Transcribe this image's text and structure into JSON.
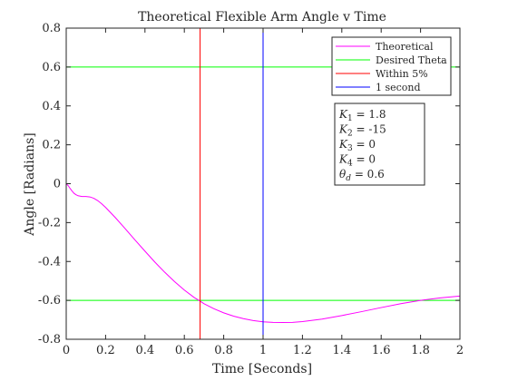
{
  "chart_data": {
    "type": "line",
    "title": "Theoretical Flexible Arm Angle v Time",
    "xlabel": "Time [Seconds]",
    "ylabel": "Angle [Radians]",
    "xlim": [
      0,
      2
    ],
    "ylim": [
      -0.8,
      0.8
    ],
    "grid": false,
    "legend_position": "top-right",
    "x_ticks": [
      0,
      0.2,
      0.4,
      0.6,
      0.8,
      1,
      1.2,
      1.4,
      1.6,
      1.8,
      2
    ],
    "x_tick_labels": [
      "0",
      "0.2",
      "0.4",
      "0.6",
      "0.8",
      "1",
      "1.2",
      "1.4",
      "1.6",
      "1.8",
      "2"
    ],
    "y_ticks": [
      -0.8,
      -0.6,
      -0.4,
      -0.2,
      0,
      0.2,
      0.4,
      0.6,
      0.8
    ],
    "y_tick_labels": [
      "-0.8",
      "-0.6",
      "-0.4",
      "-0.2",
      "0",
      "0.2",
      "0.4",
      "0.6",
      "0.8"
    ],
    "series": [
      {
        "name": "Theoretical",
        "color": "#ff00ff",
        "kind": "curve",
        "x": [
          0,
          0.01,
          0.02,
          0.03,
          0.04,
          0.05,
          0.06,
          0.08,
          0.1,
          0.12,
          0.14,
          0.16,
          0.18,
          0.2,
          0.25,
          0.3,
          0.35,
          0.4,
          0.45,
          0.5,
          0.55,
          0.6,
          0.65,
          0.68,
          0.7,
          0.75,
          0.8,
          0.85,
          0.9,
          0.95,
          1.0,
          1.05,
          1.1,
          1.15,
          1.2,
          1.3,
          1.4,
          1.5,
          1.6,
          1.7,
          1.8,
          1.9,
          2.0
        ],
        "y": [
          0,
          -0.01,
          -0.025,
          -0.038,
          -0.05,
          -0.057,
          -0.062,
          -0.066,
          -0.066,
          -0.068,
          -0.075,
          -0.087,
          -0.103,
          -0.122,
          -0.175,
          -0.232,
          -0.29,
          -0.347,
          -0.403,
          -0.455,
          -0.503,
          -0.547,
          -0.585,
          -0.604,
          -0.617,
          -0.643,
          -0.664,
          -0.681,
          -0.694,
          -0.704,
          -0.71,
          -0.713,
          -0.714,
          -0.713,
          -0.709,
          -0.696,
          -0.678,
          -0.658,
          -0.637,
          -0.617,
          -0.6,
          -0.587,
          -0.578
        ]
      },
      {
        "name": "Desired Theta",
        "color": "#00ff00",
        "kind": "hline",
        "y": 0.6
      },
      {
        "name": "Within 5%",
        "color": "#ff0000",
        "kind": "vline",
        "x": 0.68
      },
      {
        "name": "1 second",
        "color": "#0000ff",
        "kind": "vline",
        "x": 1.0
      }
    ],
    "extra_lines": [
      {
        "kind": "hline",
        "y": -0.6,
        "color": "#00ff00"
      }
    ],
    "annotation": {
      "lines": [
        {
          "sym": "K",
          "sub": "1",
          "value": " = 1.8"
        },
        {
          "sym": "K",
          "sub": "2",
          "value": " = -15"
        },
        {
          "sym": "K",
          "sub": "3",
          "value": " = 0"
        },
        {
          "sym": "K",
          "sub": "4",
          "value": " = 0"
        },
        {
          "sym": "θ",
          "sub": "d",
          "value": " = 0.6"
        }
      ]
    }
  }
}
